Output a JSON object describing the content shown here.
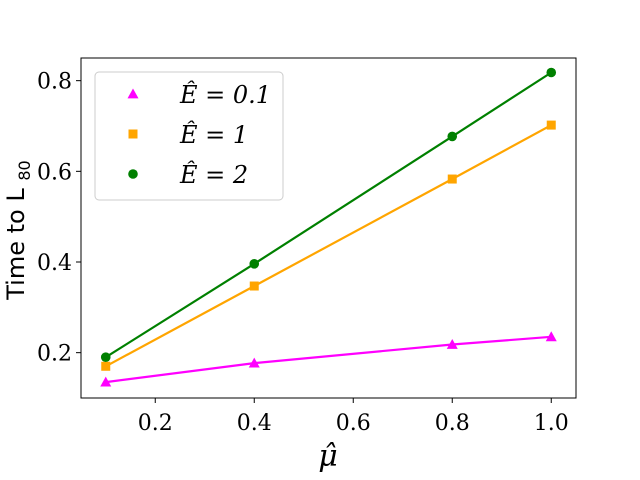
{
  "chart_data": {
    "type": "line",
    "xlabel": "μ̂",
    "ylabel": "Time to L",
    "ylabel_sub": "80",
    "xlim": [
      0.05,
      1.05
    ],
    "ylim": [
      0.1,
      0.85
    ],
    "xticks": [
      0.2,
      0.4,
      0.6,
      0.8,
      1.0
    ],
    "xtick_labels": [
      "0.2",
      "0.4",
      "0.6",
      "0.8",
      "1.0"
    ],
    "yticks": [
      0.2,
      0.4,
      0.6,
      0.8
    ],
    "ytick_labels": [
      "0.2",
      "0.4",
      "0.6",
      "0.8"
    ],
    "grid": false,
    "legend_position": "top-left",
    "x": [
      0.1,
      0.4,
      0.8,
      1.0
    ],
    "series": [
      {
        "name": "Ê = 0.1",
        "marker": "triangle",
        "color": "#ff00ff",
        "values": [
          0.135,
          0.177,
          0.218,
          0.235
        ]
      },
      {
        "name": "Ê = 1",
        "marker": "square",
        "color": "#ffa500",
        "values": [
          0.17,
          0.347,
          0.583,
          0.702
        ]
      },
      {
        "name": "Ê = 2",
        "marker": "circle",
        "color": "#008000",
        "values": [
          0.19,
          0.396,
          0.677,
          0.818
        ]
      }
    ]
  }
}
